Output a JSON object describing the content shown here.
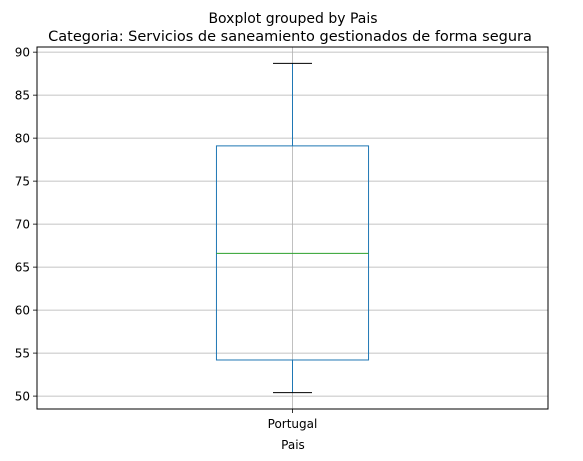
{
  "chart_data": {
    "type": "boxplot",
    "suptitle": "Boxplot grouped by Pais",
    "title": "Categoria: Servicios de saneamiento gestionados de forma segura",
    "xlabel": "Pais",
    "ylabel": "",
    "categories": [
      "Portugal"
    ],
    "boxes": [
      {
        "category": "Portugal",
        "whisker_low": 50.4,
        "q1": 54.2,
        "median": 66.6,
        "q3": 79.1,
        "whisker_high": 88.7
      }
    ],
    "ylim": [
      48.5,
      90.6
    ],
    "yticks": [
      50,
      55,
      60,
      65,
      70,
      75,
      80,
      85,
      90
    ],
    "grid": true,
    "colors": {
      "box": "#1f77b4",
      "median": "#2ca02c",
      "whisker_cap": "#000000",
      "grid": "#b0b0b0"
    }
  }
}
